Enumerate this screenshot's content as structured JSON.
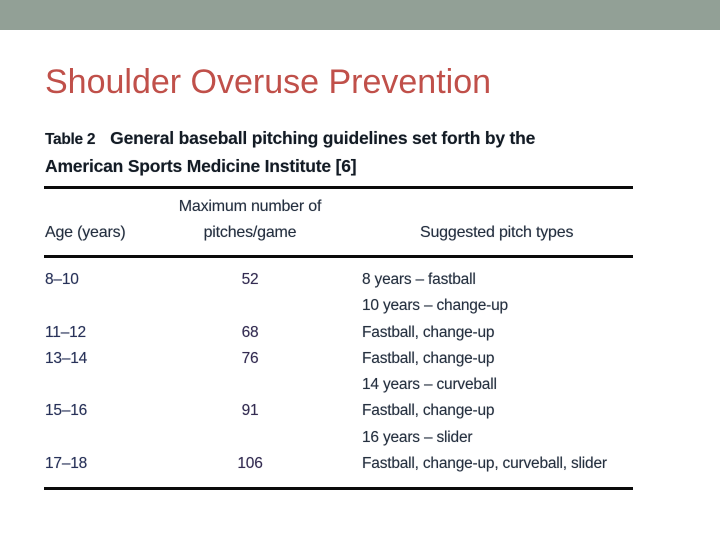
{
  "slide": {
    "title": "Shoulder Overuse Prevention"
  },
  "colors": {
    "top_bar": "#92a096",
    "title": "#c0504a",
    "rule": "#0b0b0b",
    "caption_text": "#131b24",
    "table_text": "#25303f"
  },
  "table": {
    "caption_label": "Table 2",
    "caption_line1": "General baseball pitching guidelines set forth by the",
    "caption_line2": "American Sports Medicine Institute [6]",
    "headers": {
      "age": "Age (years)",
      "pitches_line1": "Maximum number of",
      "pitches_line2": "pitches/game",
      "types": "Suggested pitch types"
    },
    "rows": [
      {
        "age": "8–10",
        "pitches": "52",
        "types": "8 years – fastball"
      },
      {
        "age": "",
        "pitches": "",
        "types": "10 years – change-up"
      },
      {
        "age": "11–12",
        "pitches": "68",
        "types": "Fastball, change-up"
      },
      {
        "age": "13–14",
        "pitches": "76",
        "types": "Fastball, change-up"
      },
      {
        "age": "",
        "pitches": "",
        "types": "14 years – curveball"
      },
      {
        "age": "15–16",
        "pitches": "91",
        "types": "Fastball, change-up"
      },
      {
        "age": "",
        "pitches": "",
        "types": "16 years – slider"
      },
      {
        "age": "17–18",
        "pitches": "106",
        "types": "Fastball, change-up, curveball, slider"
      }
    ]
  }
}
